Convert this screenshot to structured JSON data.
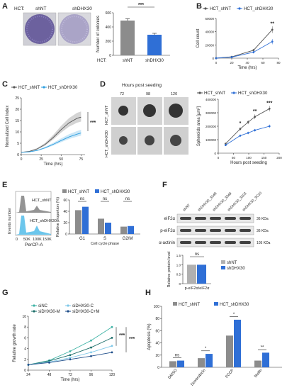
{
  "panels": {
    "A": {
      "letter": "A",
      "hct_label": "HCT:",
      "plate_labels": [
        "shNT",
        "shDHX30"
      ],
      "chart_hct_label": "HCT:",
      "sig": "***"
    },
    "B": {
      "letter": "B",
      "sig": "**"
    },
    "C": {
      "letter": "C",
      "sig": "***"
    },
    "D": {
      "letter": "D",
      "hours_title": "Hours post seeding",
      "hours": [
        "72",
        "98",
        "120"
      ],
      "row_labels": [
        "HCT_shNT",
        "HCT_shDHX30"
      ],
      "sig": [
        "*",
        "**",
        "***"
      ]
    },
    "E": {
      "letter": "E",
      "hist_labels": [
        "HCT_shNT",
        "HCT_shDHX30"
      ],
      "hist_y": "Events number",
      "hist_x": "PerCP-A",
      "hist_ticks": [
        "0",
        "50K",
        "100K",
        "150K"
      ],
      "sig": [
        "ns",
        "ns",
        "ns"
      ]
    },
    "F": {
      "letter": "F",
      "lanes": [
        "shNT",
        "shDHX30_3148",
        "shDHX30_3249",
        "shDHX30_3103",
        "shDHX30_3C10"
      ],
      "blots": [
        {
          "name": "eIF2α",
          "kda": "36 KDa"
        },
        {
          "name": "p-eIF2α",
          "kda": "36 KDa"
        },
        {
          "name": "α-actinin",
          "kda": "105 KDa"
        }
      ],
      "sig": "ns"
    },
    "G": {
      "letter": "G",
      "sig": [
        "***",
        "***"
      ]
    },
    "H": {
      "letter": "H",
      "sig": [
        "ns",
        "*",
        "*",
        "**"
      ]
    }
  },
  "chart_data": [
    {
      "id": "A",
      "type": "bar",
      "categories": [
        "shNT",
        "shDHX30"
      ],
      "values": [
        490,
        290
      ],
      "errors": [
        25,
        20
      ],
      "ylabel": "Number of colonies",
      "ylim": [
        0,
        600
      ],
      "yticks": [
        0,
        200,
        400,
        600
      ],
      "colors": [
        "#8c8c8c",
        "#2f6fd6"
      ]
    },
    {
      "id": "B",
      "type": "line",
      "x": [
        0,
        20,
        40,
        60,
        80
      ],
      "xlabel": "Time (hrs)",
      "ylabel": "Cell count",
      "xlim": [
        0,
        80
      ],
      "ylim": [
        0,
        60000
      ],
      "xticks": [
        0,
        20,
        40,
        60,
        80
      ],
      "yticks": [
        0,
        20000,
        40000,
        60000
      ],
      "ytick_labels": [
        "0",
        "20000",
        "40000",
        "60000"
      ],
      "series": [
        {
          "name": "HCT_shNT",
          "color": "#555555",
          "x": [
            0,
            20,
            48,
            72
          ],
          "y": [
            0,
            2000,
            12000,
            43000
          ],
          "err": [
            0,
            500,
            2000,
            5000
          ]
        },
        {
          "name": "HCT_shDHX30",
          "color": "#2f6fd6",
          "x": [
            0,
            20,
            48,
            72
          ],
          "y": [
            0,
            1500,
            9000,
            25000
          ],
          "err": [
            0,
            500,
            2000,
            4000
          ]
        }
      ]
    },
    {
      "id": "C",
      "type": "line",
      "xlabel": "Time (hrs)",
      "ylabel": "Normalized Cell Index",
      "xlim": [
        0,
        80
      ],
      "ylim": [
        0,
        25
      ],
      "xticks": [
        0,
        25,
        50,
        75
      ],
      "yticks": [
        0,
        5,
        10,
        15,
        20,
        25
      ],
      "series": [
        {
          "name": "HCT_shNT",
          "color": "#555555",
          "x": [
            0,
            10,
            20,
            30,
            40,
            50,
            60,
            70,
            75
          ],
          "y": [
            1,
            1.4,
            2.5,
            4.5,
            7.5,
            11,
            14,
            16,
            16.5
          ]
        },
        {
          "name": "HCT_shDHX30",
          "color": "#2f9fe0",
          "x": [
            0,
            10,
            20,
            30,
            40,
            50,
            60,
            70,
            75
          ],
          "y": [
            1,
            1.2,
            1.8,
            3,
            4.5,
            6.2,
            7.8,
            9,
            9.5
          ]
        }
      ]
    },
    {
      "id": "D",
      "type": "line",
      "xlabel": "Hours post seeding",
      "ylabel": "Spheroids area [µm²]",
      "xlim": [
        0,
        200
      ],
      "ylim": [
        0,
        400000
      ],
      "xticks": [
        0,
        50,
        100,
        150,
        200
      ],
      "yticks": [
        0,
        100000,
        200000,
        300000,
        400000
      ],
      "ytick_labels": [
        "0",
        "100000",
        "200000",
        "300000",
        "400000"
      ],
      "series": [
        {
          "name": "HCT_shNT",
          "color": "#555555",
          "x": [
            24,
            72,
            98,
            120,
            168
          ],
          "y": [
            70000,
            180000,
            230000,
            270000,
            330000
          ],
          "err": [
            5000,
            12000,
            15000,
            18000,
            20000
          ]
        },
        {
          "name": "HCT_shDHX30",
          "color": "#2f6fd6",
          "x": [
            24,
            72,
            98,
            120,
            168
          ],
          "y": [
            60000,
            130000,
            150000,
            170000,
            200000
          ],
          "err": [
            5000,
            8000,
            10000,
            10000,
            12000
          ]
        }
      ]
    },
    {
      "id": "E",
      "type": "bar",
      "categories": [
        "G1",
        "S",
        "G2/M"
      ],
      "xlabel": "Cell cycle phase",
      "ylabel": "Relative proportion (%)",
      "ylim": [
        0,
        60
      ],
      "yticks": [
        0,
        20,
        40,
        60
      ],
      "series": [
        {
          "name": "HCT_shNT",
          "color": "#8c8c8c",
          "values": [
            42,
            27,
            13
          ]
        },
        {
          "name": "HCT_shDHX30",
          "color": "#2f6fd6",
          "values": [
            48,
            20,
            14
          ]
        }
      ]
    },
    {
      "id": "F",
      "type": "bar",
      "categories": [
        "p-eIF2α/eIF2α"
      ],
      "ylabel": "Relative protein level",
      "ylim": [
        0,
        1.5
      ],
      "yticks": [
        0,
        0.5,
        1.0,
        1.5
      ],
      "ytick_labels": [
        "0",
        "0.5",
        "1.0",
        "1.5"
      ],
      "series": [
        {
          "name": "shNT",
          "color": "#b0b0b0",
          "values": [
            1.0
          ]
        },
        {
          "name": "shDHX30",
          "color": "#2f6fd6",
          "values": [
            1.0
          ]
        }
      ]
    },
    {
      "id": "G",
      "type": "line",
      "xlabel": "Time (hrs)",
      "ylabel": "Relative growth rate",
      "xlim": [
        24,
        120
      ],
      "ylim": [
        0,
        10
      ],
      "xticks": [
        24,
        48,
        72,
        96,
        120
      ],
      "yticks": [
        0,
        2,
        4,
        6,
        8,
        10
      ],
      "series": [
        {
          "name": "siNC",
          "color": "#3fb3a6",
          "x": [
            24,
            48,
            72,
            96,
            120
          ],
          "y": [
            1,
            1.8,
            3.5,
            5.5,
            8
          ]
        },
        {
          "name": "siDHX30-M",
          "color": "#1d6f6a",
          "x": [
            24,
            48,
            72,
            96,
            120
          ],
          "y": [
            1,
            1.7,
            2.8,
            4.2,
            6
          ]
        },
        {
          "name": "siDHX30-C",
          "color": "#7fc8e8",
          "x": [
            24,
            48,
            72,
            96,
            120
          ],
          "y": [
            1,
            1.5,
            2.3,
            3.3,
            4.5
          ]
        },
        {
          "name": "siDHX30-C+M",
          "color": "#1f4e8a",
          "x": [
            24,
            48,
            72,
            96,
            120
          ],
          "y": [
            1,
            1.4,
            2,
            2.6,
            3.3
          ]
        }
      ]
    },
    {
      "id": "H",
      "type": "bar",
      "categories": [
        "DMSO",
        "Doxorubicin",
        "FCCP",
        "Nutlin"
      ],
      "ylabel": "Apoptosis (%)",
      "ylim": [
        0,
        100
      ],
      "yticks": [
        0,
        20,
        40,
        60,
        80,
        100
      ],
      "series": [
        {
          "name": "HCT_shNT",
          "color": "#8c8c8c",
          "values": [
            10,
            15,
            52,
            11
          ]
        },
        {
          "name": "HCT_shDHX30",
          "color": "#2f6fd6",
          "values": [
            11,
            22,
            78,
            24
          ]
        }
      ]
    }
  ]
}
